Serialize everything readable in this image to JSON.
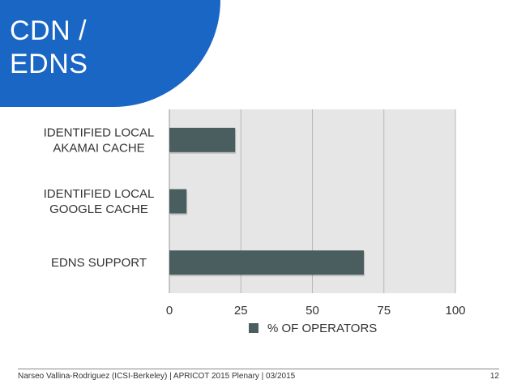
{
  "slide": {
    "title_lines": [
      "CDN /",
      "EDNS"
    ],
    "footer_text": "Narseo Vallina-Rodriguez (ICSI-Berkeley) | APRICOT 2015 Plenary | 03/2015",
    "page_number": "12",
    "accent_color": "#1a66c4"
  },
  "chart_data": {
    "type": "bar",
    "orientation": "horizontal",
    "categories": [
      [
        "IDENTIFIED LOCAL",
        "AKAMAI CACHE"
      ],
      [
        "IDENTIFIED LOCAL",
        "GOOGLE CACHE"
      ],
      [
        "EDNS SUPPORT"
      ]
    ],
    "series": [
      {
        "name": "% OF OPERATORS",
        "values": [
          23,
          6,
          68
        ],
        "color": "#4a5e5f"
      }
    ],
    "xlim": [
      0,
      100
    ],
    "xticks": [
      "0",
      "25",
      "50",
      "75",
      "100"
    ],
    "grid": true,
    "legend_position": "bottom-center",
    "plot_background": "#e6e6e6",
    "grid_color": "#b8b8b8"
  }
}
